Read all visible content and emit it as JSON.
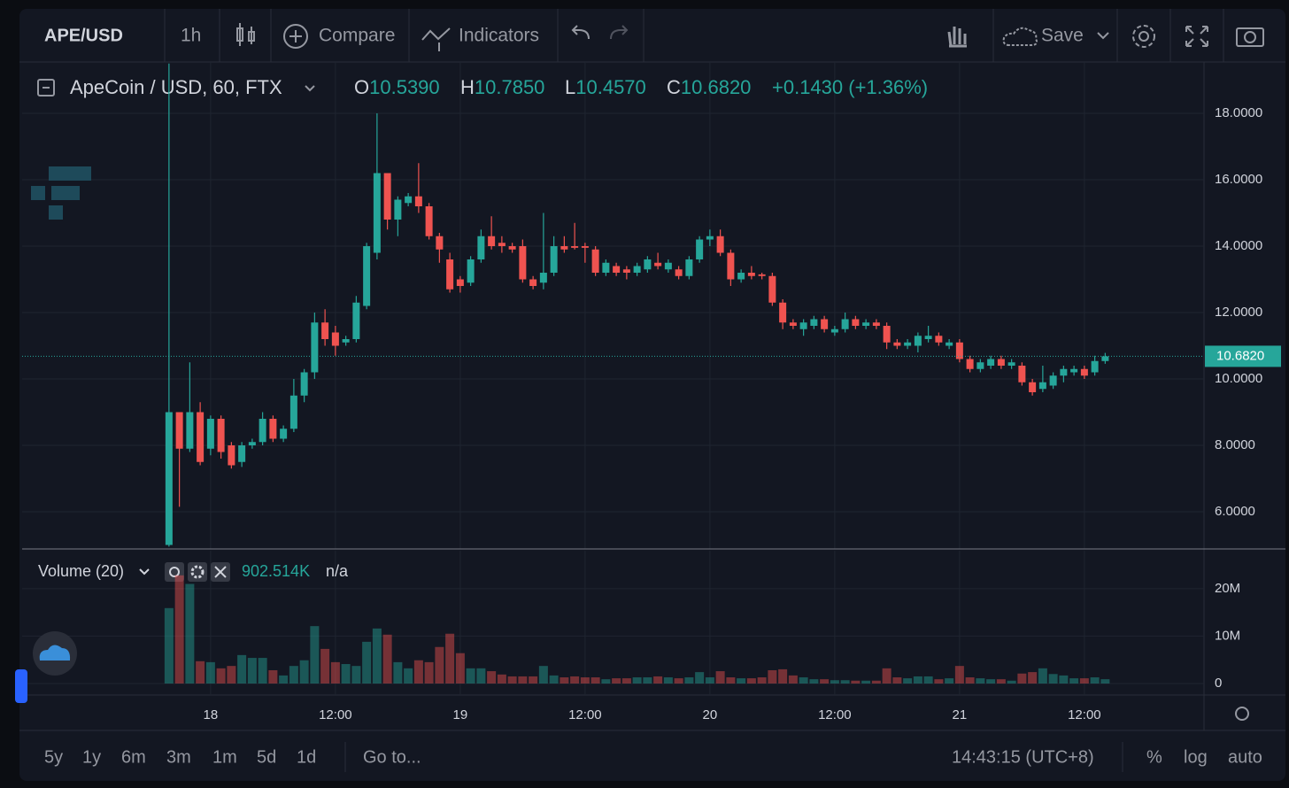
{
  "toolbar": {
    "symbol": "APE/USD",
    "interval": "1h",
    "compare": "Compare",
    "indicators": "Indicators",
    "save": "Save"
  },
  "footer": {
    "ranges": [
      "5y",
      "1y",
      "6m",
      "3m",
      "1m",
      "5d",
      "1d"
    ],
    "goto": "Go to...",
    "clock": "14:43:15 (UTC+8)",
    "percent": "%",
    "log": "log",
    "auto": "auto"
  },
  "chart_data": {
    "type": "candlestick",
    "legend": {
      "symbol": "ApeCoin / USD, 60, FTX",
      "o": "O",
      "o_value": "10.5390",
      "h": "H",
      "h_value": "10.7850",
      "l": "L",
      "l_value": "10.4570",
      "c": "C",
      "c_value": "10.6820",
      "change": "+0.1430 (+1.36%)"
    },
    "categories": [
      null,
      null,
      null,
      null,
      "18",
      null,
      null,
      null,
      null,
      null,
      null,
      null,
      null,
      null,
      null,
      null,
      "12:00",
      null,
      null,
      null,
      null,
      null,
      null,
      null,
      null,
      null,
      null,
      null,
      "19",
      null,
      null,
      null,
      null,
      null,
      null,
      null,
      null,
      null,
      null,
      null,
      "12:00",
      null,
      null,
      null,
      null,
      null,
      null,
      null,
      null,
      null,
      null,
      null,
      "20",
      null,
      null,
      null,
      null,
      null,
      null,
      null,
      null,
      null,
      null,
      null,
      "12:00",
      null,
      null,
      null,
      null,
      null,
      null,
      null,
      null,
      null,
      null,
      null,
      "21",
      null,
      null,
      null,
      null,
      null,
      null,
      null,
      null,
      null,
      null,
      null,
      "12:00",
      null,
      null
    ],
    "open": [
      5.0,
      9.0,
      7.9,
      9.0,
      7.9,
      8.8,
      8.0,
      7.5,
      8.0,
      8.1,
      8.8,
      8.2,
      8.5,
      9.5,
      10.2,
      11.7,
      11.4,
      11.1,
      11.2,
      12.2,
      13.8,
      16.2,
      14.8,
      15.3,
      15.5,
      15.2,
      14.3,
      13.6,
      13.0,
      12.9,
      13.6,
      14.3,
      14.1,
      14.0,
      14.0,
      13.0,
      12.9,
      13.2,
      14.0,
      14.0,
      14.0,
      13.9,
      13.2,
      13.4,
      13.3,
      13.2,
      13.3,
      13.5,
      13.3,
      13.3,
      13.1,
      13.6,
      14.2,
      14.3,
      13.8,
      13.0,
      13.2,
      13.15,
      13.1,
      12.3,
      11.7,
      11.5,
      11.6,
      11.8,
      11.4,
      11.5,
      11.8,
      11.6,
      11.7,
      11.6,
      11.1,
      11.0,
      11.0,
      11.2,
      11.3,
      11.0,
      11.1,
      10.6,
      10.3,
      10.4,
      10.6,
      10.4,
      10.4,
      9.9,
      9.7,
      9.8,
      10.1,
      10.2,
      10.3,
      10.2,
      10.539
    ],
    "high": [
      19.5,
      9.0,
      10.5,
      9.3,
      8.9,
      8.9,
      8.1,
      8.1,
      8.2,
      9.0,
      8.9,
      8.6,
      10.0,
      10.3,
      12.0,
      12.1,
      11.6,
      11.3,
      12.5,
      14.1,
      18.0,
      16.2,
      15.5,
      15.6,
      16.5,
      15.3,
      14.4,
      13.8,
      13.1,
      13.7,
      14.5,
      14.9,
      14.3,
      14.1,
      14.2,
      13.1,
      15.0,
      14.3,
      14.3,
      14.7,
      14.1,
      14.0,
      13.6,
      13.5,
      13.4,
      13.5,
      13.7,
      13.8,
      13.6,
      13.4,
      13.7,
      14.3,
      14.5,
      14.5,
      13.9,
      13.3,
      13.4,
      13.2,
      13.2,
      12.4,
      11.8,
      11.8,
      11.9,
      11.9,
      11.6,
      12.0,
      11.9,
      11.8,
      11.8,
      11.7,
      11.2,
      11.2,
      11.4,
      11.6,
      11.4,
      11.2,
      11.2,
      10.7,
      10.6,
      10.7,
      10.7,
      10.6,
      10.5,
      10.0,
      10.4,
      10.2,
      10.4,
      10.4,
      10.4,
      10.7,
      10.785
    ],
    "low": [
      4.95,
      6.15,
      7.8,
      7.4,
      7.7,
      7.6,
      7.3,
      7.35,
      7.9,
      8.0,
      8.1,
      8.1,
      8.4,
      9.3,
      10.0,
      11.0,
      10.7,
      11.0,
      11.1,
      12.1,
      13.6,
      14.5,
      14.3,
      15.2,
      15.0,
      14.2,
      13.5,
      12.6,
      12.6,
      12.8,
      13.5,
      13.9,
      13.8,
      13.8,
      12.9,
      12.7,
      12.7,
      13.1,
      13.8,
      13.9,
      13.5,
      13.1,
      13.1,
      13.1,
      13.0,
      13.1,
      13.2,
      13.3,
      13.2,
      13.0,
      13.0,
      13.5,
      14.0,
      13.7,
      12.8,
      12.9,
      13.0,
      13.0,
      12.2,
      11.5,
      11.5,
      11.3,
      11.5,
      11.4,
      11.3,
      11.4,
      11.5,
      11.5,
      11.5,
      10.9,
      10.9,
      10.9,
      10.8,
      11.1,
      11.0,
      10.9,
      10.5,
      10.2,
      10.2,
      10.3,
      10.3,
      10.3,
      9.8,
      9.5,
      9.6,
      9.7,
      9.9,
      10.1,
      10.0,
      10.1,
      10.457
    ],
    "close": [
      9.0,
      7.9,
      9.0,
      7.5,
      8.8,
      7.8,
      7.4,
      8.0,
      8.1,
      8.8,
      8.2,
      8.5,
      9.5,
      10.2,
      11.7,
      11.2,
      11.0,
      11.2,
      12.3,
      14.0,
      16.2,
      14.8,
      15.4,
      15.5,
      15.2,
      14.3,
      13.9,
      12.7,
      12.8,
      13.6,
      14.3,
      14.0,
      14.0,
      13.9,
      13.0,
      12.8,
      13.2,
      14.0,
      13.9,
      13.95,
      13.95,
      13.2,
      13.5,
      13.2,
      13.2,
      13.4,
      13.6,
      13.4,
      13.5,
      13.1,
      13.6,
      14.2,
      14.3,
      13.8,
      13.0,
      13.2,
      13.1,
      13.1,
      12.3,
      11.7,
      11.6,
      11.7,
      11.8,
      11.5,
      11.5,
      11.8,
      11.6,
      11.7,
      11.6,
      11.1,
      11.0,
      11.1,
      11.3,
      11.3,
      11.1,
      11.1,
      10.6,
      10.3,
      10.5,
      10.6,
      10.4,
      10.5,
      9.9,
      9.6,
      9.9,
      10.1,
      10.3,
      10.3,
      10.1,
      10.54,
      10.682
    ],
    "up_color": "#26a69a",
    "down_color": "#ef5350",
    "ylim": [
      4.88,
      19.547
    ],
    "yticks": [
      {
        "value": 6,
        "label": "6.0000"
      },
      {
        "value": 8,
        "label": "8.0000"
      },
      {
        "value": 10,
        "label": "10.0000"
      },
      {
        "value": 12,
        "label": "12.0000"
      },
      {
        "value": 14,
        "label": "14.0000"
      },
      {
        "value": 16,
        "label": "16.0000"
      },
      {
        "value": 18,
        "label": "18.0000"
      }
    ],
    "last_price_label": "10.6820",
    "grid": true,
    "volume_legend": {
      "title": "Volume (20)",
      "value": "902.514K",
      "ma": "n/a"
    },
    "volume": [
      15900000,
      22800000,
      21000000,
      4700000,
      4500000,
      3200000,
      3700000,
      6000000,
      5400000,
      5400000,
      2800000,
      1700000,
      3700000,
      4900000,
      12100000,
      7300000,
      4500000,
      4100000,
      3700000,
      8800000,
      11600000,
      10300000,
      4500000,
      3200000,
      4900000,
      4500000,
      7700000,
      10500000,
      6400000,
      3200000,
      3200000,
      2600000,
      1900000,
      1500000,
      1500000,
      1500000,
      3700000,
      1700000,
      1300000,
      1500000,
      1300000,
      1300000,
      900000,
      1100000,
      1100000,
      1300000,
      1300000,
      1500000,
      1300000,
      1100000,
      1300000,
      2400000,
      1300000,
      2600000,
      1300000,
      1100000,
      1100000,
      1300000,
      2800000,
      3000000,
      1700000,
      1300000,
      900000,
      900000,
      700000,
      700000,
      600000,
      600000,
      600000,
      3200000,
      1300000,
      1100000,
      1500000,
      1500000,
      900000,
      1100000,
      3700000,
      1300000,
      1100000,
      900000,
      900000,
      600000,
      2100000,
      2400000,
      3200000,
      2000000,
      1700000,
      1100000,
      1100000,
      1300000,
      902514
    ],
    "volume_ylim": [
      -2430000,
      28000000
    ],
    "volume_ticks": [
      {
        "value": 0,
        "label": "0"
      },
      {
        "value": 10000000,
        "label": "10M"
      },
      {
        "value": 20000000,
        "label": "20M"
      }
    ]
  }
}
